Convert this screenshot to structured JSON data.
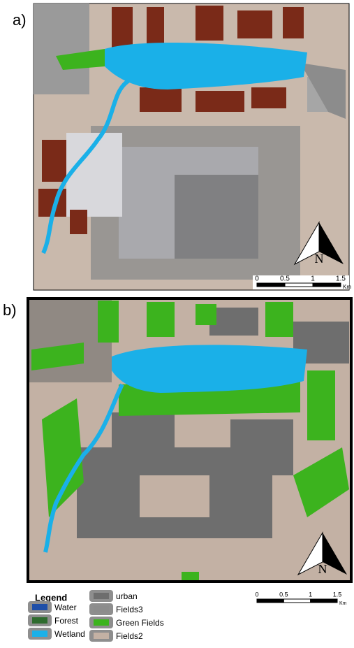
{
  "panels": [
    {
      "label": "a)",
      "north": "N",
      "scale": {
        "ticks": [
          "0",
          "0.5",
          "1",
          "1.5"
        ],
        "unit": "Km"
      }
    },
    {
      "label": "b)",
      "north": "N",
      "scale": {
        "ticks": [
          "0",
          "0.5",
          "1",
          "1.5"
        ],
        "unit": "Km"
      }
    }
  ],
  "legend": {
    "title": "Legend",
    "items": [
      {
        "name": "Water",
        "color": "#1f4fa8"
      },
      {
        "name": "Forest",
        "color": "#2e6b2e"
      },
      {
        "name": "Wetland",
        "color": "#1ab0e8"
      },
      {
        "name": "urban",
        "color": "#6e6e6e"
      },
      {
        "name": "Fields3",
        "color": "#8c8c8c"
      },
      {
        "name": "Green Fields",
        "color": "#3cb31e"
      },
      {
        "name": "Fields2",
        "color": "#c3b1a4"
      }
    ]
  }
}
